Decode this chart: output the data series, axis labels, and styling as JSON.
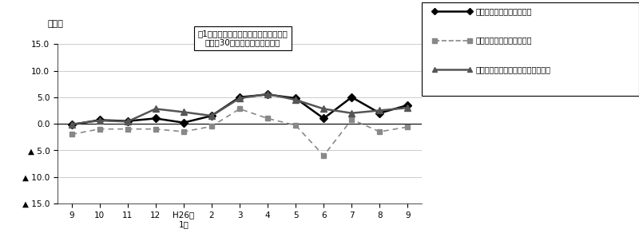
{
  "x_labels": [
    "9",
    "10",
    "11",
    "12",
    "H26年\n1月",
    "2",
    "3",
    "4",
    "5",
    "6",
    "7",
    "8",
    "9"
  ],
  "nominal_total": [
    -0.2,
    0.7,
    0.5,
    1.0,
    0.2,
    1.5,
    5.0,
    5.5,
    4.8,
    1.0,
    5.0,
    2.0,
    3.5
  ],
  "real_total": [
    -2.0,
    -1.0,
    -1.0,
    -1.0,
    -1.5,
    -0.5,
    2.8,
    1.0,
    -0.3,
    -6.0,
    0.8,
    -1.5,
    -0.6
  ],
  "nominal_fixed": [
    -0.1,
    0.6,
    0.4,
    2.8,
    2.2,
    1.5,
    4.8,
    5.6,
    4.5,
    2.8,
    2.0,
    2.5,
    3.0
  ],
  "ylim": [
    -15.0,
    15.0
  ],
  "title_line1": "囱1　賃金指数の推移（対前年同月比）",
  "title_line2": "－規模30人以上－　調査産業計",
  "ylabel": "（％）",
  "legend_labels": [
    "名目賃金（現金給与総額）",
    "実質賃金（現金給与総額）",
    "名目賃金（きまって支給する給与）"
  ],
  "color_nominal": "#000000",
  "color_real": "#888888",
  "color_fixed": "#555555",
  "bg_color": "#ffffff",
  "grid_color": "#cccccc"
}
